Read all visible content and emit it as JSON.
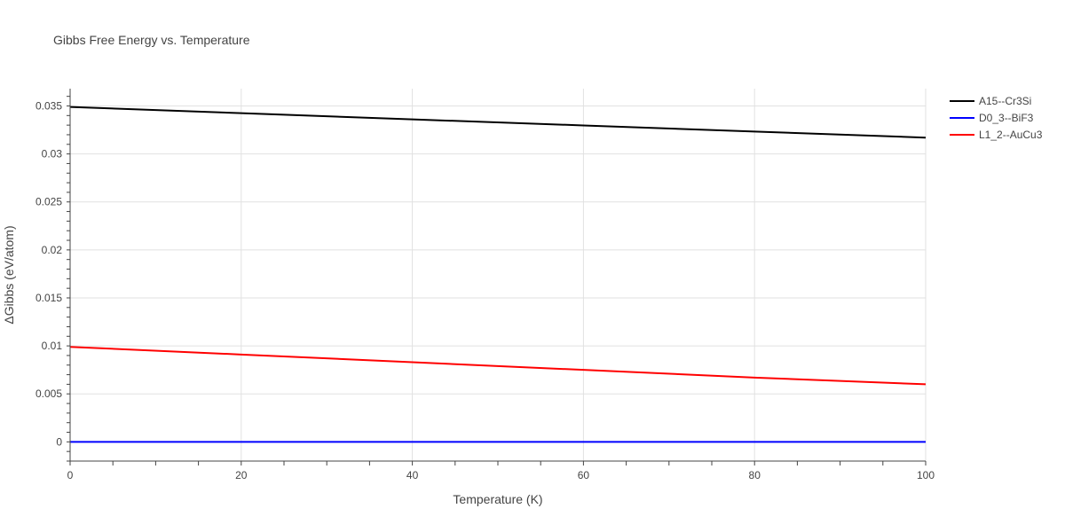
{
  "chart_data": {
    "type": "line",
    "title": "Gibbs Free Energy vs. Temperature",
    "xlabel": "Temperature (K)",
    "ylabel": "ΔGibbs (eV/atom)",
    "xlim": [
      0,
      100
    ],
    "ylim": [
      -0.002,
      0.0368
    ],
    "x_ticks": [
      0,
      20,
      40,
      60,
      80,
      100
    ],
    "x_tick_labels": [
      "0",
      "20",
      "40",
      "60",
      "80",
      "100"
    ],
    "y_ticks": [
      0,
      0.005,
      0.01,
      0.015,
      0.02,
      0.025,
      0.03,
      0.035
    ],
    "y_tick_labels": [
      "0",
      "0.005",
      "0.01",
      "0.015",
      "0.02",
      "0.025",
      "0.03",
      "0.035"
    ],
    "grid": true,
    "legend_position": "top-right, outside plot",
    "series": [
      {
        "name": "A15--Cr3Si",
        "color": "#000000",
        "x": [
          0,
          20,
          40,
          60,
          80,
          100
        ],
        "y": [
          0.0349,
          0.03425,
          0.0336,
          0.03297,
          0.03233,
          0.0317
        ]
      },
      {
        "name": "D0_3--BiF3",
        "color": "#0000ff",
        "x": [
          0,
          20,
          40,
          60,
          80,
          100
        ],
        "y": [
          0,
          0,
          0,
          0,
          0,
          0
        ]
      },
      {
        "name": "L1_2--AuCu3",
        "color": "#ff0000",
        "x": [
          0,
          20,
          40,
          60,
          80,
          100
        ],
        "y": [
          0.0099,
          0.0091,
          0.0083,
          0.0075,
          0.0067,
          0.006
        ]
      }
    ]
  }
}
